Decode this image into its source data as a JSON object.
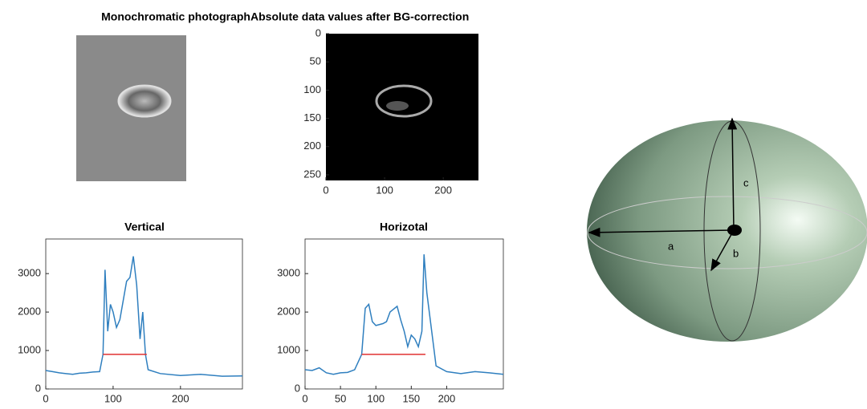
{
  "chart_data": [
    {
      "type": "image",
      "title": "Monochromatic photograph"
    },
    {
      "type": "image",
      "title": "Absolute data values after BG-correction",
      "xlim": [
        0,
        260
      ],
      "xticks": [
        0,
        100,
        200
      ],
      "ylim": [
        0,
        260
      ],
      "yticks": [
        0,
        50,
        100,
        150,
        200,
        250
      ],
      "y_reversed": true
    },
    {
      "type": "line",
      "title": "Vertical",
      "xlim": [
        0,
        292
      ],
      "xticks": [
        0,
        100,
        200
      ],
      "ylim": [
        0,
        3900
      ],
      "yticks": [
        0,
        1000,
        2000,
        3000
      ],
      "series": [
        {
          "color": "#2f7fbf",
          "x": [
            0,
            10,
            20,
            30,
            40,
            50,
            60,
            70,
            80,
            85,
            88,
            92,
            96,
            100,
            105,
            110,
            115,
            120,
            125,
            130,
            135,
            140,
            144,
            148,
            152,
            170,
            200,
            230,
            262,
            292
          ],
          "values": [
            480,
            450,
            420,
            400,
            380,
            410,
            420,
            440,
            450,
            900,
            3100,
            1500,
            2200,
            2000,
            1600,
            1800,
            2300,
            2800,
            2900,
            3450,
            2700,
            1300,
            2000,
            900,
            500,
            400,
            350,
            380,
            330,
            340
          ]
        },
        {
          "color": "#e03030",
          "x": [
            85,
            150
          ],
          "values": [
            900,
            900
          ]
        }
      ]
    },
    {
      "type": "line",
      "title": "Horizotal",
      "xlim": [
        0,
        280
      ],
      "xticks": [
        0,
        50,
        100,
        150,
        200
      ],
      "ylim": [
        0,
        3900
      ],
      "yticks": [
        0,
        1000,
        2000,
        3000
      ],
      "series": [
        {
          "color": "#2f7fbf",
          "x": [
            0,
            10,
            20,
            30,
            40,
            50,
            60,
            70,
            80,
            85,
            90,
            95,
            100,
            110,
            115,
            120,
            130,
            135,
            140,
            145,
            150,
            155,
            160,
            165,
            168,
            172,
            185,
            200,
            220,
            240,
            260,
            280
          ],
          "values": [
            500,
            480,
            550,
            420,
            380,
            420,
            430,
            500,
            900,
            2100,
            2200,
            1750,
            1650,
            1700,
            1750,
            2000,
            2150,
            1800,
            1500,
            1100,
            1400,
            1300,
            1100,
            1500,
            3500,
            2500,
            600,
            450,
            400,
            450,
            420,
            380
          ]
        },
        {
          "color": "#e03030",
          "x": [
            80,
            170
          ],
          "values": [
            900,
            900
          ]
        }
      ]
    }
  ],
  "diagram": {
    "labels": [
      "a",
      "b",
      "c"
    ]
  }
}
